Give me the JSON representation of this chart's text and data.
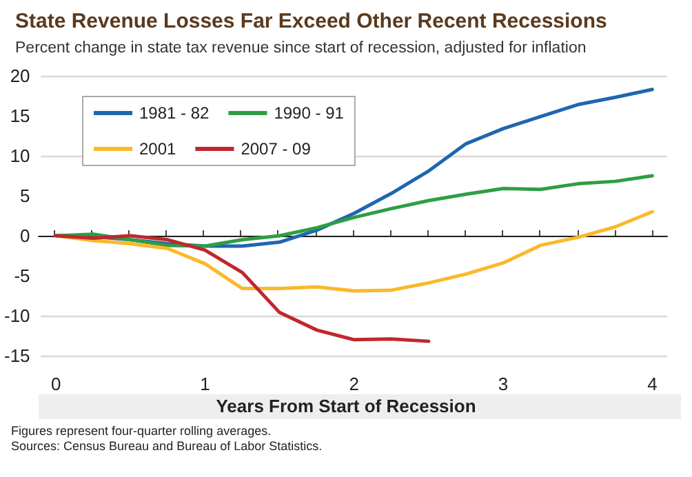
{
  "chart_data": {
    "type": "line",
    "title": "State Revenue Losses Far Exceed Other Recent Recessions",
    "subtitle": "Percent change in state tax revenue since start of recession, adjusted for inflation",
    "xlabel": "Years From Start of Recession",
    "annotations": [
      "Figures represent four-quarter rolling averages.",
      "Sources: Census Bureau and Bureau of Labor Statistics."
    ],
    "x": [
      0,
      0.25,
      0.5,
      0.75,
      1,
      1.25,
      1.5,
      1.75,
      2,
      2.25,
      2.5,
      2.75,
      3,
      3.25,
      3.5,
      3.75,
      4
    ],
    "series": [
      {
        "name": "1981 - 82",
        "color": "#1f66b0",
        "values": [
          0,
          -0.1,
          -0.5,
          -1,
          -1.3,
          -1.3,
          -0.8,
          0.7,
          2.8,
          5.3,
          8.1,
          11.5,
          13.4,
          14.9,
          16.4,
          17.3,
          18.3
        ]
      },
      {
        "name": "1990 - 91",
        "color": "#2e9e44",
        "values": [
          0,
          0.2,
          -0.5,
          -1.2,
          -1.3,
          -0.5,
          0,
          1,
          2.3,
          3.4,
          4.4,
          5.2,
          5.9,
          5.8,
          6.5,
          6.8,
          7.5
        ]
      },
      {
        "name": "2001",
        "color": "#fbb829",
        "values": [
          0,
          -0.6,
          -1,
          -1.6,
          -3.5,
          -6.6,
          -6.6,
          -6.4,
          -6.9,
          -6.8,
          -5.9,
          -4.8,
          -3.4,
          -1.2,
          -0.2,
          1.1,
          3
        ]
      },
      {
        "name": "2007 - 09",
        "color": "#c0272d",
        "values": [
          0,
          -0.3,
          0,
          -0.5,
          -1.8,
          -4.6,
          -9.6,
          -11.8,
          -13,
          -12.9,
          -13.2,
          null,
          null,
          null,
          null,
          null,
          null
        ]
      }
    ],
    "xlim": [
      -0.1,
      4.1
    ],
    "xticks": [
      0,
      {
        "value": 0.25,
        "label": null
      },
      {
        "value": 0.5,
        "label": null
      },
      {
        "value": 0.75,
        "label": null
      },
      1,
      {
        "value": 1.25,
        "label": null
      },
      {
        "value": 1.5,
        "label": null
      },
      {
        "value": 1.75,
        "label": null
      },
      2,
      {
        "value": 2.25,
        "label": null
      },
      {
        "value": 2.5,
        "label": null
      },
      {
        "value": 2.75,
        "label": null
      },
      3,
      {
        "value": 3.25,
        "label": null
      },
      {
        "value": 3.5,
        "label": null
      },
      {
        "value": 3.75,
        "label": null
      },
      4
    ],
    "ylim": [
      -15,
      20
    ],
    "yticks": [
      -15,
      -10,
      -5,
      0,
      5,
      10,
      15,
      20
    ],
    "grid": "y",
    "legend": "top left",
    "marker": "none",
    "line_style": "solid"
  }
}
